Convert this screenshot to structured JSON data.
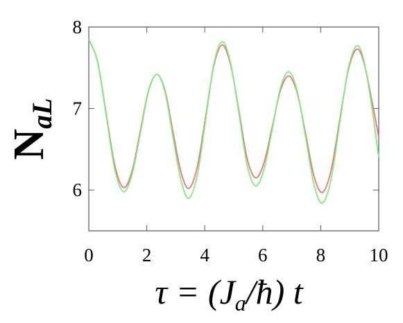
{
  "chart_data": {
    "type": "line",
    "xlabel": [
      "τ = (J",
      "a",
      "/ħ) t"
    ],
    "ylabel": [
      "N",
      "aL"
    ],
    "x": [
      0,
      0.3,
      0.6,
      0.9,
      1.2,
      1.49,
      1.78,
      2.06,
      2.35,
      2.63,
      2.9,
      3.18,
      3.45,
      3.74,
      4.03,
      4.31,
      4.6,
      4.89,
      5.18,
      5.46,
      5.75,
      6.04,
      6.33,
      6.61,
      6.9,
      7.19,
      7.48,
      7.76,
      8.05,
      8.35,
      8.65,
      8.95,
      9.25,
      9.5,
      9.75,
      10
    ],
    "series": [
      {
        "color": "#f07070",
        "values": [
          7.85,
          7.58,
          6.94,
          6.3,
          6.03,
          6.23,
          6.73,
          7.22,
          7.42,
          7.22,
          6.72,
          6.22,
          6.02,
          6.28,
          6.9,
          7.52,
          7.78,
          7.54,
          6.97,
          6.39,
          6.15,
          6.33,
          6.78,
          7.22,
          7.4,
          7.19,
          6.69,
          6.18,
          5.97,
          6.23,
          6.85,
          7.47,
          7.73,
          7.55,
          7.12,
          6.65
        ]
      },
      {
        "color": "#80e880",
        "values": [
          7.85,
          7.58,
          6.92,
          6.25,
          5.98,
          6.19,
          6.7,
          7.21,
          7.42,
          7.2,
          6.66,
          6.12,
          5.9,
          6.18,
          6.86,
          7.54,
          7.82,
          7.56,
          6.94,
          6.31,
          6.05,
          6.25,
          6.75,
          7.25,
          7.45,
          7.21,
          6.65,
          6.08,
          5.84,
          6.12,
          6.81,
          7.49,
          7.77,
          7.57,
          7.05,
          6.4
        ]
      }
    ],
    "xlim": [
      0,
      10
    ],
    "xticks": [
      0,
      2,
      4,
      6,
      8,
      10
    ],
    "ylim": [
      5.5,
      8
    ],
    "yticks": [
      6,
      7,
      8
    ],
    "grid": false
  }
}
